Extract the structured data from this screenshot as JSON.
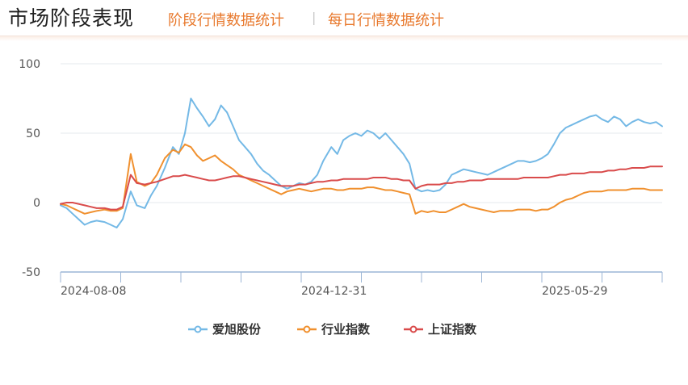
{
  "header": {
    "title": "市场阶段表现",
    "tab1": "阶段行情数据统计",
    "separator": "|",
    "tab2": "每日行情数据统计"
  },
  "colors": {
    "series1": "#74b9e6",
    "series2": "#f0902e",
    "series3": "#d94b4b",
    "grid": "#e4e8ee",
    "axis": "#9cb6d6",
    "title": "#1f1f1f",
    "accent": "#e8792d"
  },
  "chart_data": {
    "type": "line",
    "ylim": [
      -50,
      100
    ],
    "yticks": [
      100,
      50,
      0,
      -50
    ],
    "x_tick_labels": [
      "2024-08-08",
      "2024-12-31",
      "2025-05-29"
    ],
    "x_tick_label_positions": [
      1,
      5,
      9
    ],
    "x_tick_count": 11,
    "x": [
      0,
      3,
      6,
      9,
      12,
      15,
      18,
      22,
      25,
      28,
      31,
      35,
      38,
      42,
      45,
      48,
      52,
      56,
      59,
      62,
      65,
      68,
      71,
      74,
      77,
      80,
      83,
      86,
      89,
      92,
      95,
      98,
      101,
      104,
      107,
      110,
      113,
      116,
      119,
      122,
      125,
      128,
      131,
      135,
      138,
      141,
      144,
      147,
      150,
      153,
      156,
      159,
      162,
      165,
      168,
      171,
      174,
      177,
      180,
      183,
      186,
      189,
      192,
      195,
      198,
      201,
      204,
      207,
      210,
      213,
      216,
      219,
      222,
      225,
      228,
      231,
      234,
      237,
      240,
      243,
      246,
      249,
      252,
      255,
      258,
      261,
      264,
      267,
      270,
      273,
      276,
      279,
      282,
      285,
      288,
      291,
      294,
      297,
      300
    ],
    "series": [
      {
        "name": "爱旭股份",
        "color": "#74b9e6",
        "values": [
          -2,
          -4,
          -8,
          -12,
          -16,
          -14,
          -13,
          -14,
          -16,
          -18,
          -12,
          8,
          -2,
          -4,
          5,
          12,
          25,
          40,
          35,
          50,
          75,
          68,
          62,
          55,
          60,
          70,
          65,
          55,
          45,
          40,
          35,
          28,
          23,
          20,
          16,
          12,
          10,
          12,
          14,
          13,
          15,
          20,
          30,
          40,
          35,
          45,
          48,
          50,
          48,
          52,
          50,
          46,
          50,
          45,
          40,
          35,
          28,
          10,
          8,
          9,
          8,
          9,
          13,
          20,
          22,
          24,
          23,
          22,
          21,
          20,
          22,
          24,
          26,
          28,
          30,
          30,
          29,
          30,
          32,
          35,
          42,
          50,
          54,
          56,
          58,
          60,
          62,
          63,
          60,
          58,
          62,
          60,
          55,
          58,
          60,
          58,
          57,
          58,
          55
        ]
      },
      {
        "name": "行业指数",
        "color": "#f0902e",
        "values": [
          -1,
          -2,
          -4,
          -6,
          -8,
          -7,
          -6,
          -5,
          -6,
          -6,
          -4,
          35,
          15,
          12,
          14,
          20,
          32,
          38,
          36,
          42,
          40,
          34,
          30,
          32,
          34,
          30,
          27,
          24,
          20,
          18,
          16,
          14,
          12,
          10,
          8,
          6,
          8,
          9,
          10,
          9,
          8,
          9,
          10,
          10,
          9,
          9,
          10,
          10,
          10,
          11,
          11,
          10,
          9,
          9,
          8,
          7,
          6,
          -8,
          -6,
          -7,
          -6,
          -7,
          -7,
          -5,
          -3,
          -1,
          -3,
          -4,
          -5,
          -6,
          -7,
          -6,
          -6,
          -6,
          -5,
          -5,
          -5,
          -6,
          -5,
          -5,
          -3,
          0,
          2,
          3,
          5,
          7,
          8,
          8,
          8,
          9,
          9,
          9,
          9,
          10,
          10,
          10,
          9,
          9,
          9
        ]
      },
      {
        "name": "上证指数",
        "color": "#d94b4b",
        "values": [
          -1,
          0,
          0,
          -1,
          -2,
          -3,
          -4,
          -4,
          -5,
          -5,
          -3,
          20,
          14,
          13,
          14,
          15,
          17,
          19,
          19,
          20,
          19,
          18,
          17,
          16,
          16,
          17,
          18,
          19,
          19,
          18,
          17,
          16,
          15,
          14,
          13,
          12,
          12,
          12,
          13,
          13,
          14,
          15,
          15,
          16,
          16,
          17,
          17,
          17,
          17,
          17,
          18,
          18,
          18,
          17,
          17,
          16,
          16,
          10,
          12,
          13,
          13,
          13,
          14,
          14,
          15,
          15,
          16,
          16,
          16,
          17,
          17,
          17,
          17,
          17,
          17,
          18,
          18,
          18,
          18,
          18,
          19,
          20,
          20,
          21,
          21,
          21,
          22,
          22,
          22,
          23,
          23,
          24,
          24,
          25,
          25,
          25,
          26,
          26,
          26
        ]
      }
    ],
    "legend_position": "bottom-center",
    "grid": true
  }
}
